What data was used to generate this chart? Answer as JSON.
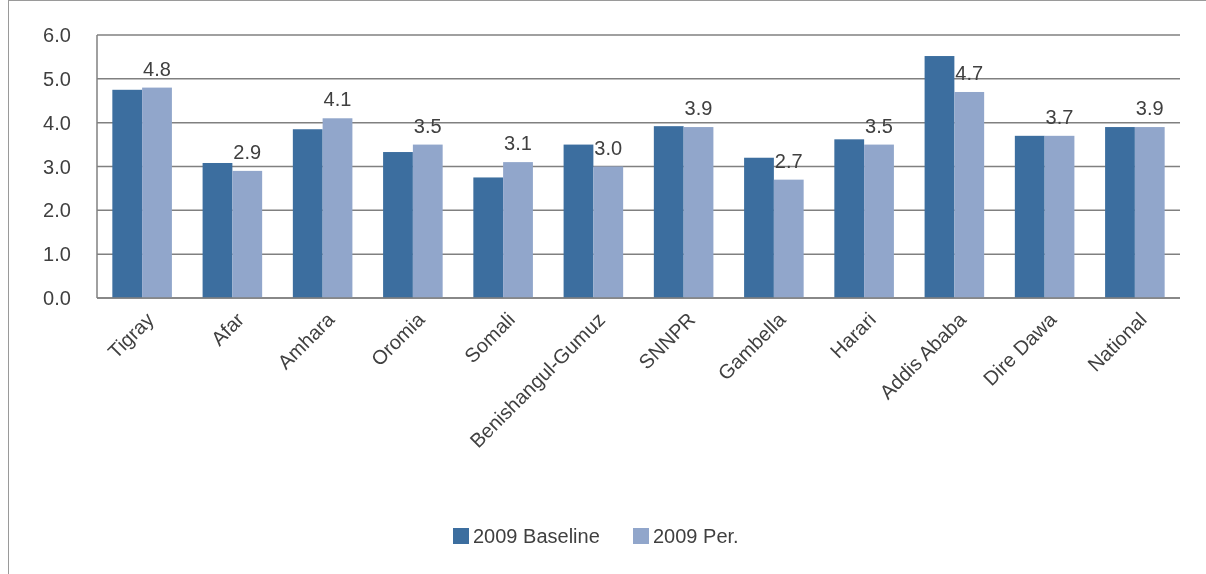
{
  "chart_data": {
    "type": "bar",
    "categories": [
      "Tigray",
      "Afar",
      "Amhara",
      "Oromia",
      "Somali",
      "Benishangul-Gumuz",
      "SNNPR",
      "Gambella",
      "Harari",
      "Addis Ababa",
      "Dire Dawa",
      "National"
    ],
    "series": [
      {
        "name": "2009 Baseline",
        "color": "#3c6e9f",
        "values": [
          4.75,
          3.08,
          3.85,
          3.33,
          2.75,
          3.5,
          3.92,
          3.2,
          3.62,
          5.52,
          3.7,
          3.9
        ]
      },
      {
        "name": "2009 Per.",
        "color": "#91a6cb",
        "values": [
          4.8,
          2.9,
          4.1,
          3.5,
          3.1,
          3.0,
          3.9,
          2.7,
          3.5,
          4.7,
          3.7,
          3.9
        ],
        "value_labels": [
          "4.8",
          "2.9",
          "4.1",
          "3.5",
          "3.1",
          "3.0",
          "3.9",
          "2.7",
          "3.5",
          "4.7",
          "3.7",
          "3.9"
        ]
      }
    ],
    "ylim": [
      0,
      6
    ],
    "yticks": [
      {
        "value": 0,
        "label": "0.0"
      },
      {
        "value": 1,
        "label": "1.0"
      },
      {
        "value": 2,
        "label": "2.0"
      },
      {
        "value": 3,
        "label": "3.0"
      },
      {
        "value": 4,
        "label": "4.0"
      },
      {
        "value": 5,
        "label": "5.0"
      },
      {
        "value": 6,
        "label": "6.0"
      }
    ],
    "grid": "y",
    "legend": "bottom"
  }
}
